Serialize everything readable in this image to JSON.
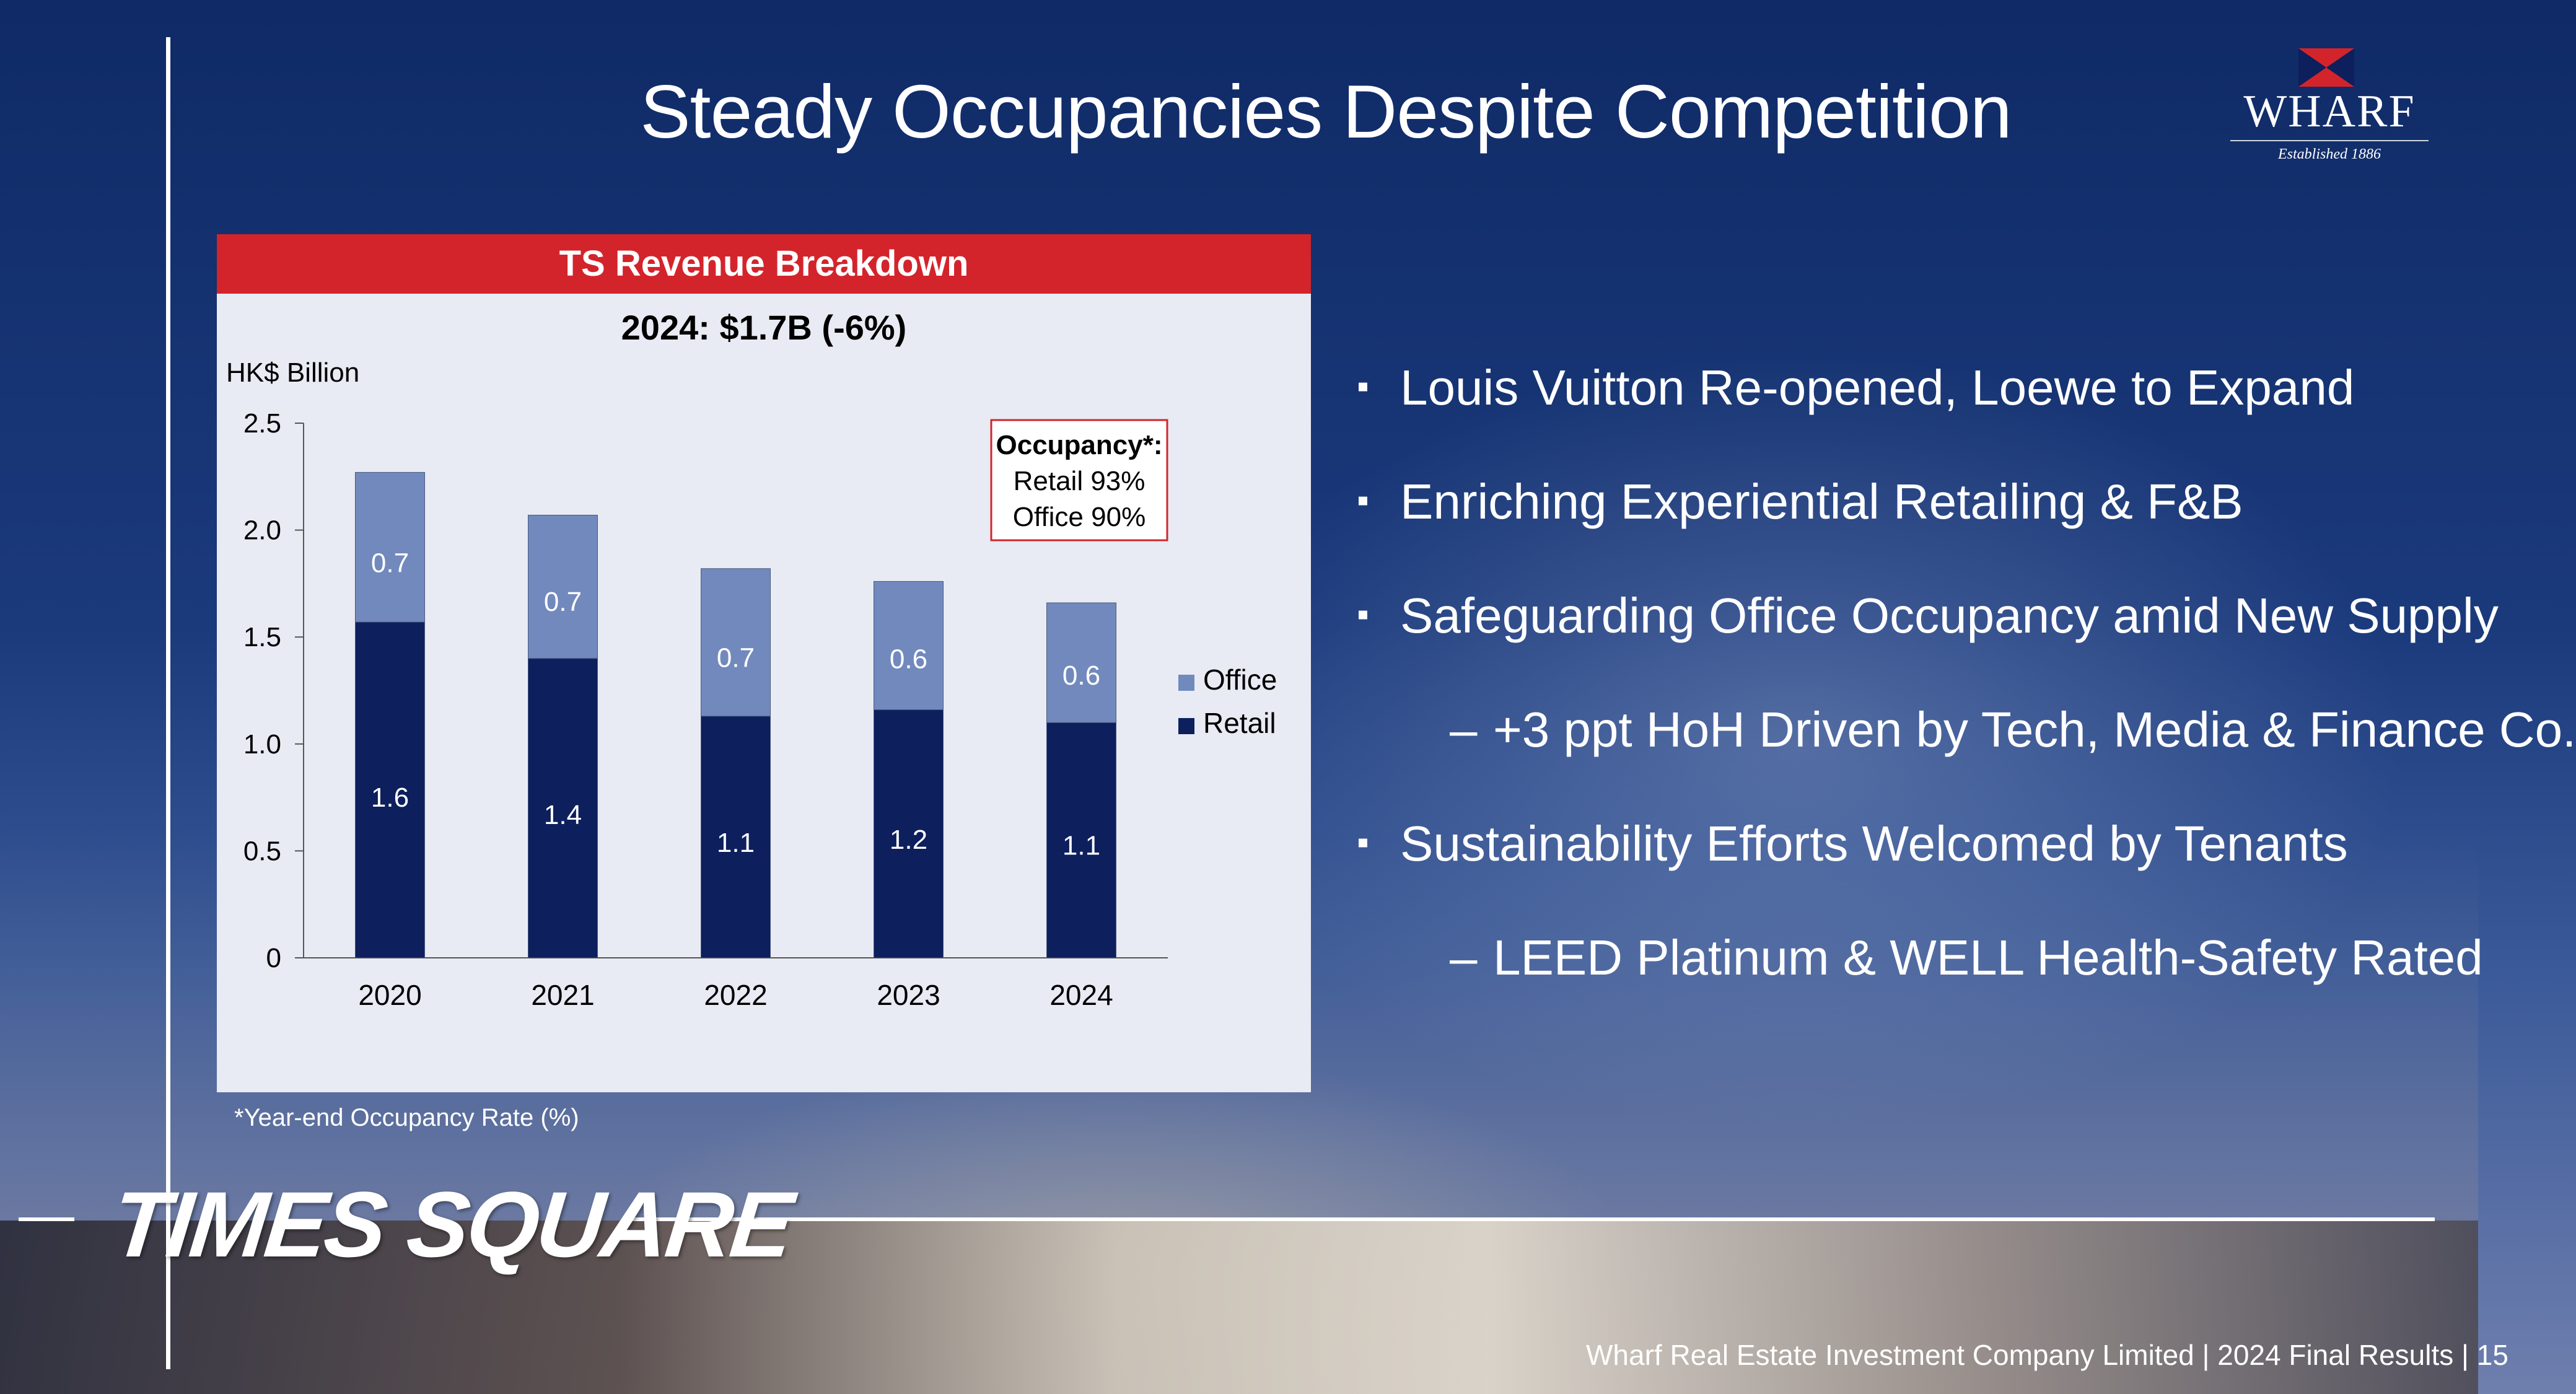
{
  "slide": {
    "title": "Steady Occupancies Despite Competition",
    "logo": {
      "text": "WHARF",
      "established": "Established 1886"
    },
    "panel_header": "TS Revenue Breakdown",
    "footnote": "*Year-end Occupancy Rate (%)",
    "brand_banner": "TIMES SQUARE",
    "footer": "Wharf Real Estate Investment Company Limited | 2024 Final Results | 15"
  },
  "occupancy_box": {
    "title": "Occupancy*:",
    "lines": [
      "Retail 93%",
      "Office 90%"
    ]
  },
  "bullets": [
    {
      "level": 1,
      "marker": "▪",
      "text": "Louis Vuitton Re-opened, Loewe to Expand"
    },
    {
      "level": 1,
      "marker": "▪",
      "text": "Enriching Experiential Retailing & F&B"
    },
    {
      "level": 1,
      "marker": "▪",
      "text": "Safeguarding Office Occupancy amid New Supply"
    },
    {
      "level": 2,
      "marker": "–",
      "text": "+3 ppt HoH Driven by Tech, Media & Finance Co."
    },
    {
      "level": 1,
      "marker": "▪",
      "text": "Sustainability Efforts Welcomed by Tenants"
    },
    {
      "level": 2,
      "marker": "–",
      "text": "LEED Platinum & WELL Health-Safety Rated"
    }
  ],
  "colors": {
    "retail": "#0d1f5c",
    "office": "#7289bd",
    "header_red": "#d3242b",
    "panel_bg": "#e8ebf3"
  },
  "chart_data": {
    "type": "bar",
    "stacked": true,
    "title": "2024: $1.7B (-6%)",
    "ylabel": "HK$ Billion",
    "xlabel": "",
    "categories": [
      "2020",
      "2021",
      "2022",
      "2023",
      "2024"
    ],
    "series": [
      {
        "name": "Retail",
        "values": [
          1.57,
          1.4,
          1.13,
          1.16,
          1.1
        ],
        "labels": [
          "1.6",
          "1.4",
          "1.1",
          "1.2",
          "1.1"
        ]
      },
      {
        "name": "Office",
        "values": [
          0.7,
          0.67,
          0.69,
          0.6,
          0.56
        ],
        "labels": [
          "0.7",
          "0.7",
          "0.7",
          "0.6",
          "0.6"
        ]
      }
    ],
    "ylim": [
      0,
      2.5
    ],
    "yticks": [
      {
        "value": 0,
        "label": "0"
      },
      {
        "value": 0.5,
        "label": "0.5"
      },
      {
        "value": 1.0,
        "label": "1.0"
      },
      {
        "value": 1.5,
        "label": "1.5"
      },
      {
        "value": 2.0,
        "label": "2.0"
      },
      {
        "value": 2.5,
        "label": "2.5"
      }
    ],
    "legend": {
      "position": "right",
      "entries": [
        "Office",
        "Retail"
      ]
    },
    "grid": false
  }
}
